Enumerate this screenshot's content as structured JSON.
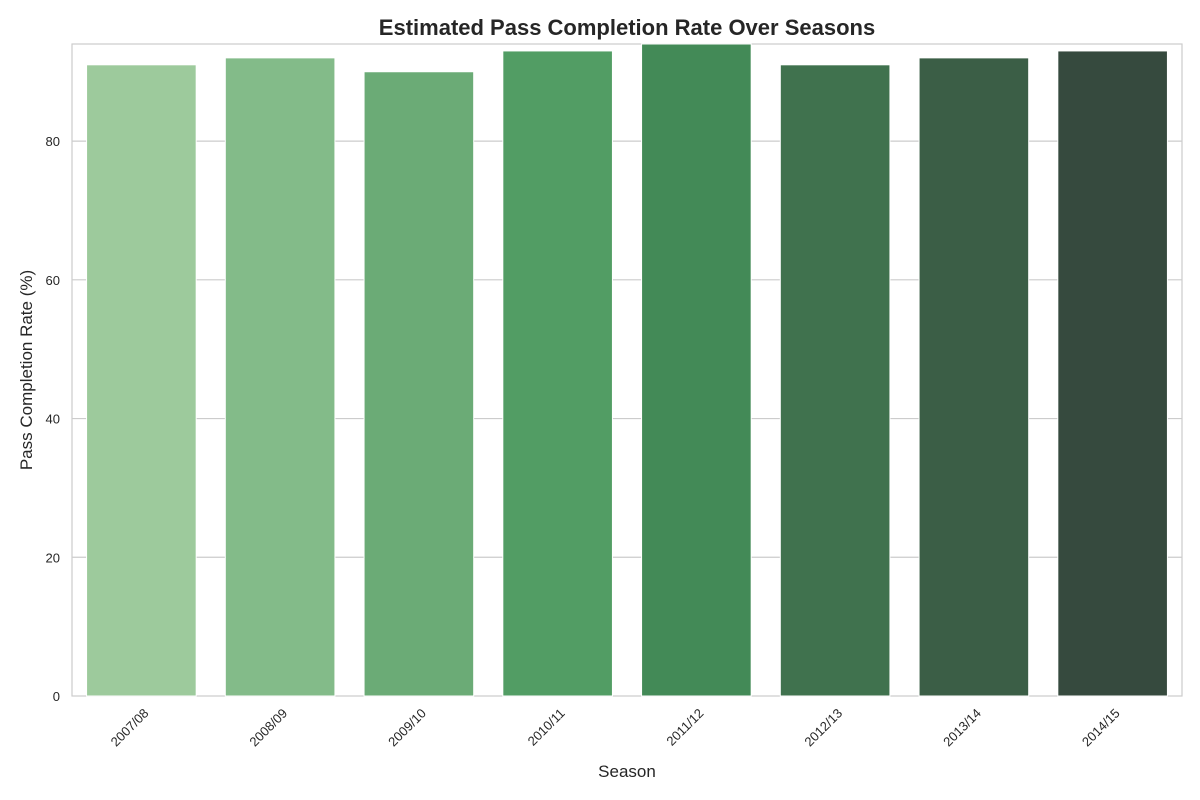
{
  "chart_data": {
    "type": "bar",
    "title": "Estimated Pass Completion Rate Over Seasons",
    "xlabel": "Season",
    "ylabel": "Pass Completion Rate (%)",
    "categories": [
      "2007/08",
      "2008/09",
      "2009/10",
      "2010/11",
      "2011/12",
      "2012/13",
      "2013/14",
      "2014/15"
    ],
    "values": [
      91,
      92,
      90,
      93,
      94,
      91,
      92,
      93
    ],
    "colors": [
      "#9dca9c",
      "#83bb89",
      "#6bab76",
      "#529d64",
      "#438a57",
      "#40724e",
      "#3b5e46",
      "#364a3e"
    ],
    "ylim": [
      0,
      94
    ],
    "yticks": [
      0,
      20,
      40,
      60,
      80
    ],
    "grid": "horizontal",
    "legend": "none"
  }
}
